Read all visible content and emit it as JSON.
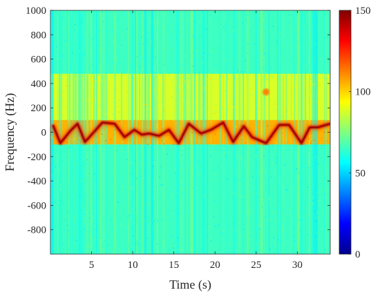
{
  "chart_data": {
    "type": "heatmap",
    "title": "",
    "xlabel": "Time (s)",
    "ylabel": "Frequency (Hz)",
    "xlim": [
      0,
      34
    ],
    "ylim": [
      -1000,
      1000
    ],
    "x_ticks": [
      5,
      10,
      15,
      20,
      25,
      30
    ],
    "x_tick_labels": [
      "5",
      "10",
      "15",
      "20",
      "25",
      "30"
    ],
    "y_ticks": [
      1000,
      800,
      600,
      400,
      200,
      0,
      -200,
      -400,
      -600,
      -800
    ],
    "y_tick_labels": [
      "1000",
      "800",
      "600",
      "400",
      "200",
      "0",
      "-200",
      "-400",
      "-600",
      "-800"
    ],
    "colorbar": {
      "colormap": "jet",
      "range": [
        0,
        150
      ],
      "ticks": [
        0,
        50,
        100,
        150
      ],
      "tick_labels": [
        "0",
        "50",
        "100",
        "150"
      ]
    },
    "grid": false,
    "background_level": 65,
    "bands": [
      {
        "freq_range": [
          100,
          480
        ],
        "level": 88
      },
      {
        "freq_range": [
          -100,
          100
        ],
        "level": 105
      }
    ],
    "micro_doppler_trace": {
      "level": 140,
      "time": [
        0.3,
        1.2,
        2.4,
        3.3,
        4.2,
        5.4,
        6.3,
        7.8,
        9.0,
        10.2,
        11.1,
        12.0,
        13.2,
        14.4,
        15.6,
        16.8,
        18.3,
        19.5,
        21.0,
        22.2,
        23.5,
        24.5,
        26.2,
        27.8,
        29.0,
        30.5,
        31.5,
        32.5,
        34.0
      ],
      "freq": [
        60,
        -90,
        10,
        70,
        -80,
        10,
        80,
        70,
        -40,
        20,
        -20,
        -10,
        -30,
        20,
        -90,
        70,
        -10,
        20,
        80,
        -80,
        50,
        -40,
        -90,
        60,
        60,
        -90,
        40,
        40,
        70
      ]
    },
    "hotspot": {
      "time": 26.2,
      "freq": 330,
      "level": 112
    }
  }
}
